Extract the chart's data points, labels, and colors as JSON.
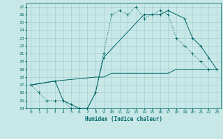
{
  "xlabel": "Humidex (Indice chaleur)",
  "bg_color": "#c8e8e8",
  "line_color": "#006666",
  "grid_color": "#a8cccc",
  "xlim": [
    -0.5,
    23.5
  ],
  "ylim": [
    14,
    27.5
  ],
  "xticks": [
    0,
    1,
    2,
    3,
    4,
    5,
    6,
    7,
    8,
    9,
    10,
    11,
    12,
    13,
    14,
    15,
    16,
    17,
    18,
    19,
    20,
    21,
    22,
    23
  ],
  "yticks": [
    14,
    15,
    16,
    17,
    18,
    19,
    20,
    21,
    22,
    23,
    24,
    25,
    26,
    27
  ],
  "line1_x": [
    0,
    1,
    2,
    3,
    4,
    5,
    6,
    7,
    8,
    9,
    10,
    11,
    12,
    13,
    14,
    15,
    16,
    17,
    18,
    19,
    20,
    21,
    22
  ],
  "line1_y": [
    17,
    16,
    15,
    15,
    15,
    14,
    14,
    14,
    16,
    21,
    26,
    26.5,
    26,
    27,
    25.5,
    26,
    26.5,
    26,
    23,
    22,
    21,
    20,
    19
  ],
  "line2_x": [
    0,
    3,
    8,
    9,
    10,
    11,
    12,
    13,
    14,
    15,
    16,
    17,
    18,
    19,
    20,
    21,
    22,
    23
  ],
  "line2_y": [
    17,
    17.5,
    18,
    18,
    18.5,
    18.5,
    18.5,
    18.5,
    18.5,
    18.5,
    18.5,
    18.5,
    19,
    19,
    19,
    19,
    19,
    19
  ],
  "line3_x": [
    0,
    3,
    4,
    5,
    6,
    7,
    8,
    9,
    14,
    16,
    17,
    19,
    20,
    21,
    22,
    23
  ],
  "line3_y": [
    17,
    17.5,
    15,
    14.5,
    14,
    14,
    16,
    20.5,
    26,
    26,
    26.5,
    25.5,
    23,
    22,
    20.5,
    19
  ]
}
